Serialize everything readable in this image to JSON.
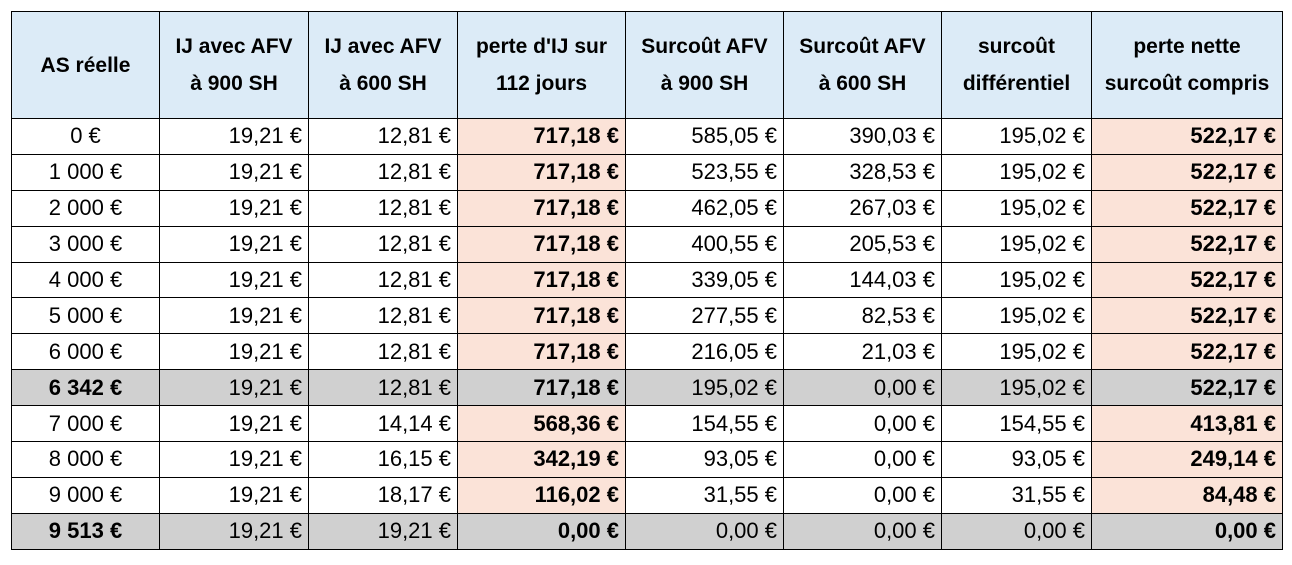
{
  "table": {
    "headers": [
      "AS réelle",
      "IJ avec AFV\nà 900 SH",
      "IJ avec AFV\nà 600 SH",
      "perte d'IJ sur\n112 jours",
      "Surcoût AFV\nà 900 SH",
      "Surcoût AFV\nà 600 SH",
      "surcoût\ndifférentiel",
      "perte nette\nsurcoût compris"
    ],
    "rows": [
      [
        "0 €",
        "19,21 €",
        "12,81 €",
        "717,18 €",
        "585,05 €",
        "390,03 €",
        "195,02 €",
        "522,17 €"
      ],
      [
        "1 000 €",
        "19,21 €",
        "12,81 €",
        "717,18 €",
        "523,55 €",
        "328,53 €",
        "195,02 €",
        "522,17 €"
      ],
      [
        "2 000 €",
        "19,21 €",
        "12,81 €",
        "717,18 €",
        "462,05 €",
        "267,03 €",
        "195,02 €",
        "522,17 €"
      ],
      [
        "3 000 €",
        "19,21 €",
        "12,81 €",
        "717,18 €",
        "400,55 €",
        "205,53 €",
        "195,02 €",
        "522,17 €"
      ],
      [
        "4 000 €",
        "19,21 €",
        "12,81 €",
        "717,18 €",
        "339,05 €",
        "144,03 €",
        "195,02 €",
        "522,17 €"
      ],
      [
        "5 000 €",
        "19,21 €",
        "12,81 €",
        "717,18 €",
        "277,55 €",
        "82,53 €",
        "195,02 €",
        "522,17 €"
      ],
      [
        "6 000 €",
        "19,21 €",
        "12,81 €",
        "717,18 €",
        "216,05 €",
        "21,03 €",
        "195,02 €",
        "522,17 €"
      ],
      [
        "6 342 €",
        "19,21 €",
        "12,81 €",
        "717,18 €",
        "195,02 €",
        "0,00 €",
        "195,02 €",
        "522,17 €"
      ],
      [
        "7 000 €",
        "19,21 €",
        "14,14 €",
        "568,36 €",
        "154,55 €",
        "0,00 €",
        "154,55 €",
        "413,81 €"
      ],
      [
        "8 000 €",
        "19,21 €",
        "16,15 €",
        "342,19 €",
        "93,05 €",
        "0,00 €",
        "93,05 €",
        "249,14 €"
      ],
      [
        "9 000 €",
        "19,21 €",
        "18,17 €",
        "116,02 €",
        "31,55 €",
        "0,00 €",
        "31,55 €",
        "84,48 €"
      ],
      [
        "9 513 €",
        "19,21 €",
        "19,21 €",
        "0,00 €",
        "0,00 €",
        "0,00 €",
        "0,00 €",
        "0,00 €"
      ]
    ],
    "highlighted_rows": [
      7,
      11
    ],
    "colors": {
      "header_fill": "#dcebf7",
      "loss_fill": "#fbe3d8",
      "highlight_fill": "#d0d0d0",
      "border": "#000000"
    }
  }
}
